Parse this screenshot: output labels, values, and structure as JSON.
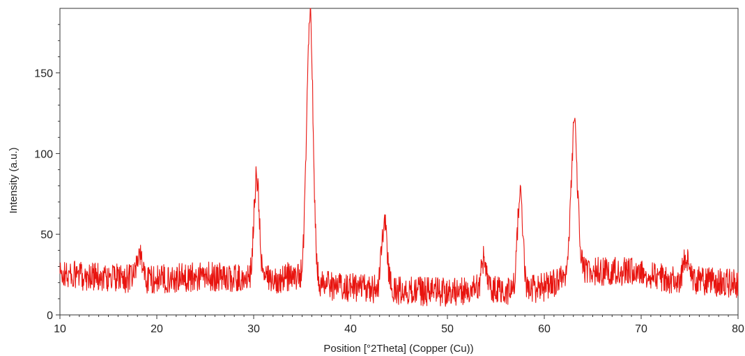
{
  "chart_data": {
    "type": "line",
    "title": "",
    "xlabel": "Position [°2Theta] (Copper (Cu))",
    "ylabel": "Intensity (a.u.)",
    "xlim": [
      10,
      80
    ],
    "ylim": [
      0,
      190
    ],
    "x_ticks": [
      10,
      20,
      30,
      40,
      50,
      60,
      70,
      80
    ],
    "y_ticks": [
      0,
      50,
      100,
      150
    ],
    "grid": false,
    "legend": "none",
    "colors": {
      "series": "#e8140f",
      "axis": "#333333",
      "background": "#ffffff"
    },
    "series": [
      {
        "style": "noisy diffraction pattern",
        "noise_amplitude": 9,
        "baseline": [
          [
            10,
            25
          ],
          [
            15,
            23
          ],
          [
            20,
            22
          ],
          [
            25,
            24
          ],
          [
            29,
            22
          ],
          [
            32,
            22
          ],
          [
            34,
            24
          ],
          [
            38,
            18
          ],
          [
            42,
            16
          ],
          [
            45,
            15
          ],
          [
            50,
            14
          ],
          [
            53,
            16
          ],
          [
            56,
            15
          ],
          [
            60,
            17
          ],
          [
            64,
            27
          ],
          [
            70,
            27
          ],
          [
            73,
            22
          ],
          [
            76,
            21
          ],
          [
            80,
            19
          ]
        ],
        "peaks": [
          {
            "x": 18.2,
            "y": 38
          },
          {
            "x": 30.3,
            "y": 85
          },
          {
            "x": 35.8,
            "y": 187
          },
          {
            "x": 43.5,
            "y": 59
          },
          {
            "x": 53.8,
            "y": 35
          },
          {
            "x": 57.5,
            "y": 72
          },
          {
            "x": 63.1,
            "y": 117
          },
          {
            "x": 74.6,
            "y": 35
          }
        ]
      }
    ]
  }
}
